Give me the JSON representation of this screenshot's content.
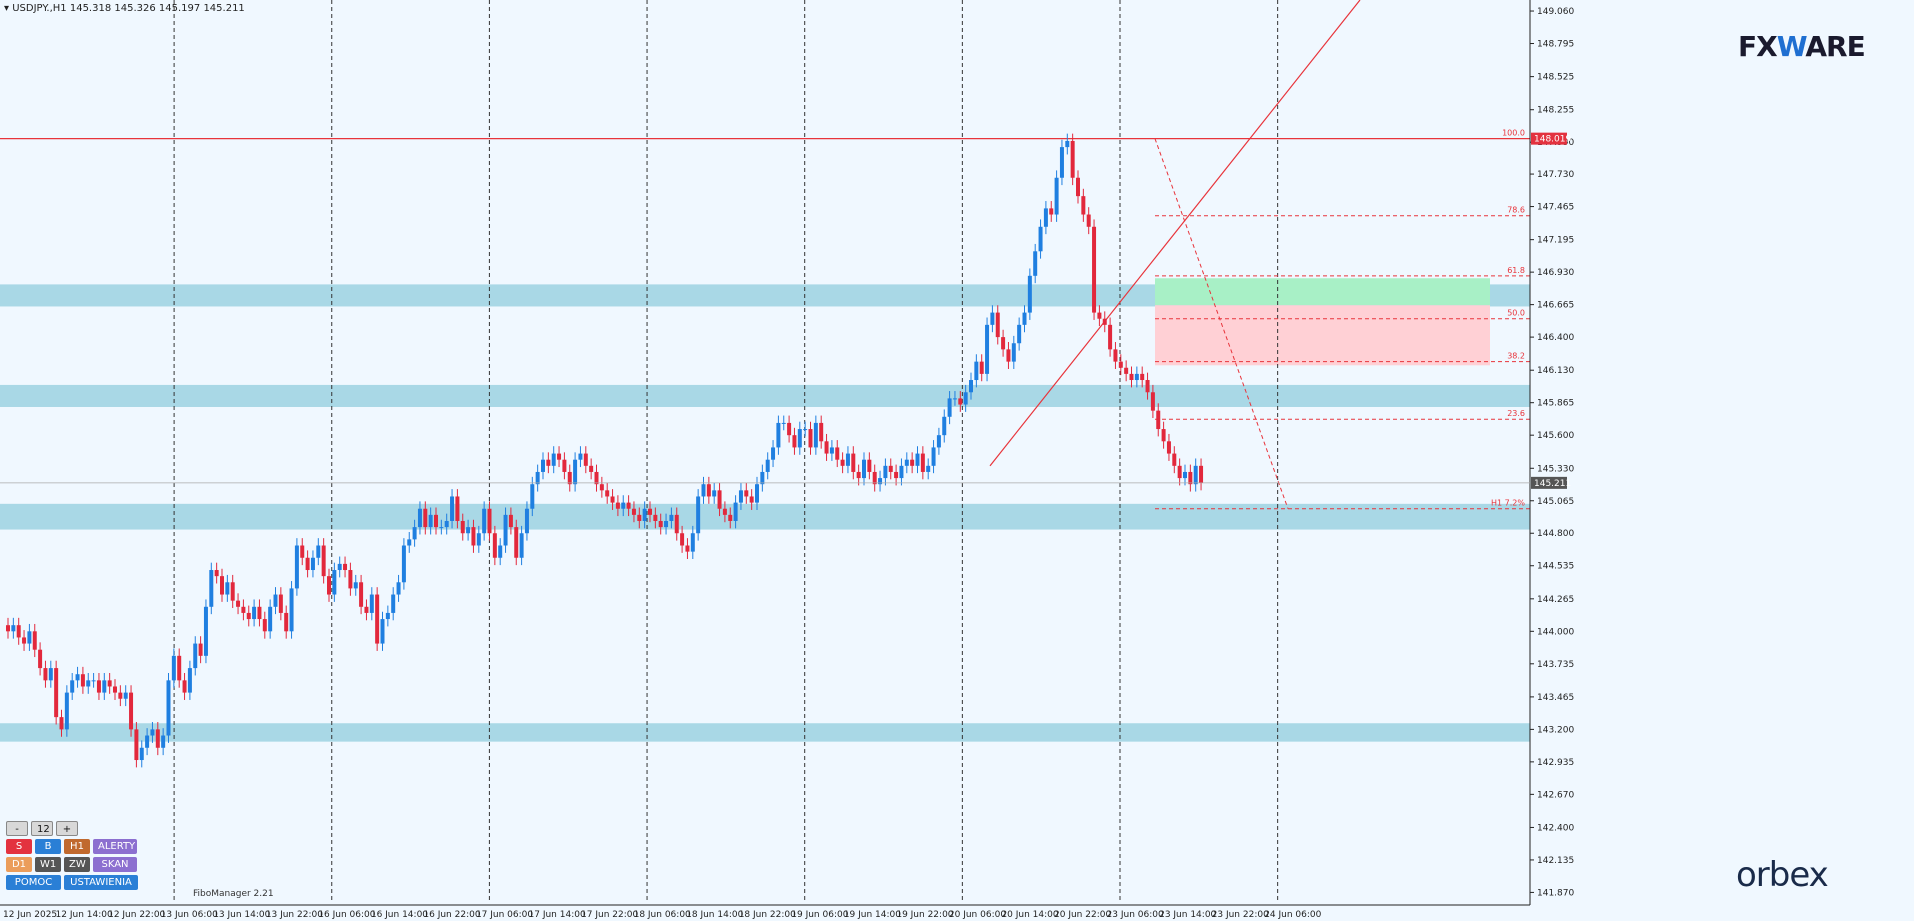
{
  "symbol_header": "USDJPY.,H1  145.318 145.326 145.197 145.211",
  "logos": {
    "fxware_prefix": "FX",
    "fxware_mid": "W",
    "fxware_suffix": "ARE",
    "orbex": "orbex"
  },
  "panel": {
    "minus": "-",
    "value": "12",
    "plus": "+",
    "row1": [
      "S",
      "B",
      "H1",
      "ALERTY"
    ],
    "row2": [
      "D1",
      "W1",
      "ZW",
      "SKAN"
    ],
    "row3": [
      "POMOC",
      "USTAWIENIA"
    ]
  },
  "fibo_manager_label": "FiboManager 2.21",
  "colors": {
    "background": "#f0f8ff",
    "bull": "#1f7fe0",
    "bear": "#e2283c",
    "zone": "#a9d8e6",
    "buy_zone": "#a8f0c6",
    "sell_zone": "#ffd0d5",
    "fib_line": "#e8343b"
  },
  "chart_data": {
    "type": "candlestick",
    "instrument": "USDJPY.,H1",
    "ohlc_current": {
      "open": 145.318,
      "high": 145.326,
      "low": 145.197,
      "close": 145.211
    },
    "ylim": [
      141.8,
      149.15
    ],
    "y_ticks": [
      "149.060",
      "148.795",
      "148.525",
      "148.255",
      "147.990",
      "147.730",
      "147.465",
      "147.195",
      "146.930",
      "146.665",
      "146.400",
      "146.130",
      "145.865",
      "145.600",
      "145.330",
      "145.065",
      "144.800",
      "144.535",
      "144.265",
      "144.000",
      "143.735",
      "143.465",
      "143.200",
      "142.935",
      "142.670",
      "142.400",
      "142.135",
      "141.870"
    ],
    "x_ticks": [
      "12 Jun 2025",
      "12 Jun 14:00",
      "12 Jun 22:00",
      "13 Jun 06:00",
      "13 Jun 14:00",
      "13 Jun 22:00",
      "16 Jun 06:00",
      "16 Jun 14:00",
      "16 Jun 22:00",
      "17 Jun 06:00",
      "17 Jun 14:00",
      "17 Jun 22:00",
      "18 Jun 06:00",
      "18 Jun 14:00",
      "18 Jun 22:00",
      "19 Jun 06:00",
      "19 Jun 14:00",
      "19 Jun 22:00",
      "20 Jun 06:00",
      "20 Jun 14:00",
      "20 Jun 22:00",
      "23 Jun 06:00",
      "23 Jun 14:00",
      "23 Jun 22:00",
      "24 Jun 06:00"
    ],
    "price_tags": {
      "high_level": "148.019",
      "current": "145.211"
    },
    "fib_levels": [
      {
        "label": "100.0",
        "value": 148.019
      },
      {
        "label": "78.6",
        "value": 147.39
      },
      {
        "label": "61.8",
        "value": 146.9
      },
      {
        "label": "50.0",
        "value": 146.55
      },
      {
        "label": "38.2",
        "value": 146.2
      },
      {
        "label": "23.6",
        "value": 145.73
      },
      {
        "label": "H1 7.2%",
        "value": 145.0
      }
    ],
    "support_resistance_zones": [
      {
        "from": 146.65,
        "to": 146.83
      },
      {
        "from": 145.83,
        "to": 146.01
      },
      {
        "from": 144.83,
        "to": 145.04
      },
      {
        "from": 143.1,
        "to": 143.25
      }
    ],
    "buy_zone": {
      "from": 146.66,
      "to": 146.88
    },
    "sell_zone": {
      "from": 146.17,
      "to": 146.66
    },
    "candle_closes": [
      144.0,
      144.05,
      143.95,
      143.9,
      144.0,
      143.85,
      143.7,
      143.6,
      143.7,
      143.3,
      143.2,
      143.5,
      143.6,
      143.65,
      143.55,
      143.6,
      143.6,
      143.5,
      143.6,
      143.55,
      143.5,
      143.45,
      143.5,
      143.2,
      142.95,
      143.05,
      143.15,
      143.2,
      143.05,
      143.15,
      143.6,
      143.8,
      143.6,
      143.5,
      143.7,
      143.9,
      143.8,
      144.2,
      144.5,
      144.45,
      144.3,
      144.4,
      144.25,
      144.2,
      144.15,
      144.1,
      144.2,
      144.1,
      144.0,
      144.2,
      144.3,
      144.15,
      144.0,
      144.35,
      144.7,
      144.6,
      144.5,
      144.6,
      144.7,
      144.45,
      144.3,
      144.5,
      144.55,
      144.5,
      144.35,
      144.4,
      144.2,
      144.15,
      144.3,
      143.9,
      144.1,
      144.15,
      144.3,
      144.4,
      144.7,
      144.75,
      144.85,
      145.0,
      144.85,
      144.95,
      144.85,
      144.85,
      144.9,
      145.1,
      144.9,
      144.8,
      144.85,
      144.7,
      144.8,
      145.0,
      144.8,
      144.6,
      144.7,
      144.95,
      144.85,
      144.6,
      144.8,
      145.0,
      145.2,
      145.3,
      145.4,
      145.35,
      145.45,
      145.4,
      145.3,
      145.2,
      145.4,
      145.45,
      145.35,
      145.3,
      145.2,
      145.15,
      145.1,
      145.05,
      145.0,
      145.05,
      145.0,
      144.95,
      144.9,
      145.0,
      144.95,
      144.9,
      144.85,
      144.9,
      144.95,
      144.8,
      144.7,
      144.65,
      144.8,
      145.1,
      145.2,
      145.1,
      145.15,
      145.0,
      144.95,
      144.9,
      145.05,
      145.15,
      145.1,
      145.05,
      145.2,
      145.3,
      145.4,
      145.5,
      145.7,
      145.7,
      145.6,
      145.5,
      145.65,
      145.65,
      145.5,
      145.7,
      145.55,
      145.45,
      145.5,
      145.4,
      145.35,
      145.45,
      145.3,
      145.25,
      145.4,
      145.3,
      145.2,
      145.25,
      145.35,
      145.3,
      145.25,
      145.35,
      145.4,
      145.35,
      145.45,
      145.3,
      145.35,
      145.5,
      145.6,
      145.75,
      145.9,
      145.9,
      145.85,
      145.95,
      146.05,
      146.2,
      146.1,
      146.5,
      146.6,
      146.4,
      146.3,
      146.2,
      146.35,
      146.5,
      146.6,
      146.9,
      147.1,
      147.3,
      147.45,
      147.4,
      147.7,
      147.95,
      148.0,
      147.7,
      147.55,
      147.4,
      147.3,
      146.6,
      146.55,
      146.5,
      146.3,
      146.2,
      146.15,
      146.1,
      146.05,
      146.1,
      146.05,
      145.95,
      145.8,
      145.65,
      145.55,
      145.45,
      145.35,
      145.25,
      145.3,
      145.2,
      145.35,
      145.21
    ]
  }
}
